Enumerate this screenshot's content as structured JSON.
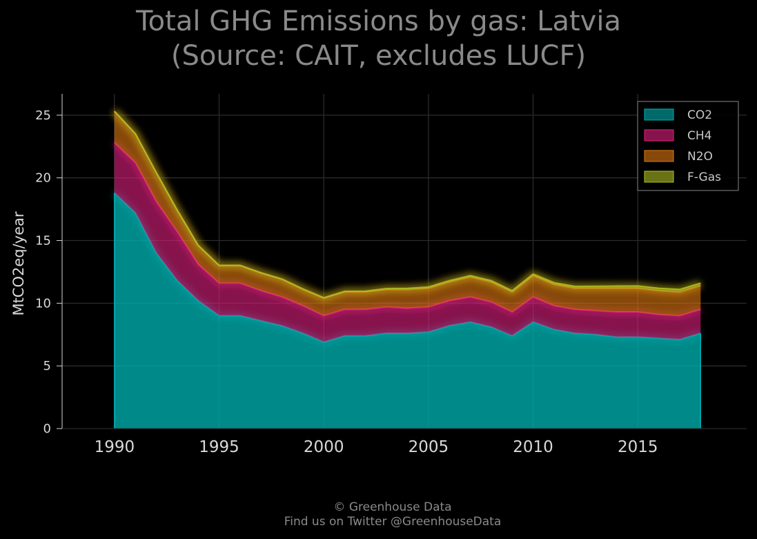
{
  "chart_data": {
    "type": "area",
    "stacked": true,
    "title": "Total GHG Emissions by gas: Latvia",
    "subtitle": "(Source: CAIT, excludes LUCF)",
    "xlabel": "",
    "ylabel": "MtCO2eq/year",
    "xlim": [
      1987.5,
      2020.2
    ],
    "ylim": [
      0,
      26.7
    ],
    "x_ticks": [
      "1990",
      "1995",
      "2000",
      "2005",
      "2010",
      "2015"
    ],
    "y_ticks": [
      "0",
      "5",
      "10",
      "15",
      "20",
      "25"
    ],
    "grid": true,
    "legend_position": "top-right",
    "x": [
      1990,
      1991,
      1992,
      1993,
      1994,
      1995,
      1996,
      1997,
      1998,
      1999,
      2000,
      2001,
      2002,
      2003,
      2004,
      2005,
      2006,
      2007,
      2008,
      2009,
      2010,
      2011,
      2012,
      2013,
      2014,
      2015,
      2016,
      2017,
      2018
    ],
    "series": [
      {
        "name": "CO2",
        "color": "#00b0b0",
        "values": [
          18.8,
          17.2,
          14.0,
          11.8,
          10.2,
          9.0,
          9.0,
          8.6,
          8.2,
          7.6,
          6.9,
          7.4,
          7.4,
          7.6,
          7.6,
          7.7,
          8.2,
          8.5,
          8.1,
          7.4,
          8.5,
          7.9,
          7.6,
          7.5,
          7.3,
          7.3,
          7.2,
          7.1,
          7.6
        ]
      },
      {
        "name": "CH4",
        "color": "#e0207e",
        "values": [
          4.0,
          4.0,
          4.1,
          3.9,
          2.9,
          2.6,
          2.6,
          2.4,
          2.3,
          2.2,
          2.1,
          2.1,
          2.1,
          2.1,
          2.0,
          2.0,
          2.0,
          2.0,
          2.0,
          1.9,
          2.0,
          1.9,
          1.9,
          1.9,
          2.0,
          2.0,
          1.9,
          1.9,
          1.9
        ]
      },
      {
        "name": "N2O",
        "color": "#e07a10",
        "values": [
          2.5,
          2.3,
          2.3,
          1.7,
          1.5,
          1.4,
          1.4,
          1.4,
          1.4,
          1.3,
          1.4,
          1.4,
          1.4,
          1.4,
          1.5,
          1.5,
          1.5,
          1.6,
          1.6,
          1.6,
          1.7,
          1.7,
          1.7,
          1.8,
          1.9,
          1.9,
          1.9,
          1.9,
          1.9
        ]
      },
      {
        "name": "F-Gas",
        "color": "#b0c020",
        "values": [
          0.02,
          0.02,
          0.02,
          0.02,
          0.02,
          0.02,
          0.02,
          0.03,
          0.03,
          0.04,
          0.04,
          0.05,
          0.06,
          0.07,
          0.08,
          0.09,
          0.1,
          0.1,
          0.1,
          0.1,
          0.12,
          0.13,
          0.14,
          0.15,
          0.17,
          0.18,
          0.19,
          0.2,
          0.2
        ]
      }
    ]
  },
  "footer": {
    "line1": "© Greenhouse Data",
    "line2": "Find us on Twitter @GreenhouseData"
  }
}
